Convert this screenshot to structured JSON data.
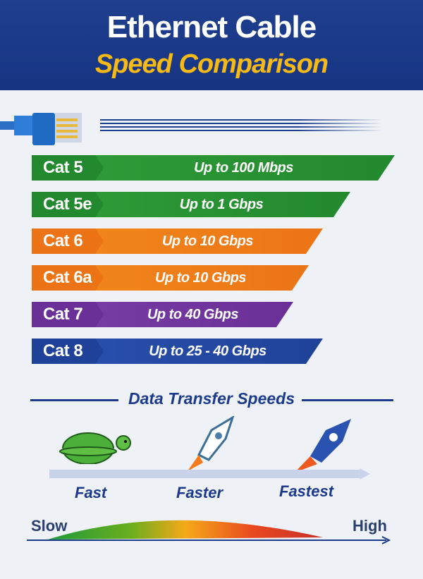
{
  "header": {
    "title": "Ethernet Cable",
    "subtitle": "Speed Comparison"
  },
  "cables": [
    {
      "name": "Cat 5",
      "speed": "Up to 100 Mbps",
      "color": "#2f9e3a",
      "label_color": "#23892e"
    },
    {
      "name": "Cat 5e",
      "speed": "Up to 1 Gbps",
      "color": "#2f9e3a",
      "label_color": "#23892e"
    },
    {
      "name": "Cat 6",
      "speed": "Up to 10 Gbps",
      "color": "#f28a1c",
      "label_color": "#ec7416"
    },
    {
      "name": "Cat 6a",
      "speed": "Up to 10 Gbps",
      "color": "#f28a1c",
      "label_color": "#ec7416"
    },
    {
      "name": "Cat 7",
      "speed": "Up to 40 Gbps",
      "color": "#7b3fa8",
      "label_color": "#6a3097"
    },
    {
      "name": "Cat 8",
      "speed": "Up to 25 - 40 Gbps",
      "color": "#2a52b0",
      "label_color": "#1f4298"
    }
  ],
  "section": {
    "title": "Data Transfer Speeds"
  },
  "speeds": {
    "fast": "Fast",
    "faster": "Faster",
    "fastest": "Fastest"
  },
  "scale": {
    "low": "Slow",
    "high": "High"
  }
}
